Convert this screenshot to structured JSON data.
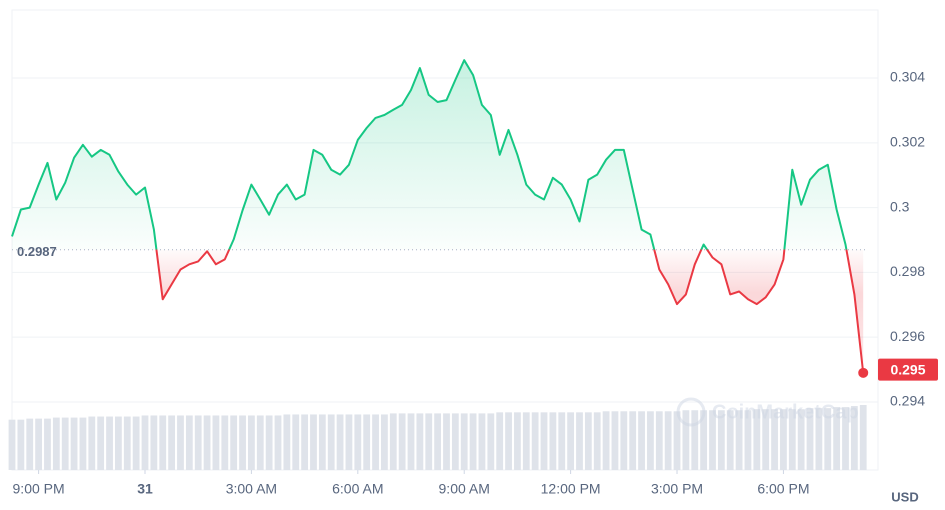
{
  "chart_data": {
    "type": "line",
    "x": [
      20.25,
      20.5,
      20.75,
      21,
      21.25,
      21.5,
      21.75,
      22,
      22.25,
      22.5,
      22.75,
      23,
      23.25,
      23.5,
      23.75,
      24,
      24.25,
      24.5,
      24.75,
      25,
      25.25,
      25.5,
      25.75,
      26,
      26.25,
      26.5,
      26.75,
      27,
      27.25,
      27.5,
      27.75,
      28,
      28.25,
      28.5,
      28.75,
      29,
      29.25,
      29.5,
      29.75,
      30,
      30.25,
      30.5,
      30.75,
      31,
      31.25,
      31.5,
      31.75,
      32,
      32.25,
      32.5,
      32.75,
      33,
      33.25,
      33.5,
      33.75,
      34,
      34.25,
      34.5,
      34.75,
      35,
      35.25,
      35.5,
      35.75,
      36,
      36.25,
      36.5,
      36.75,
      37,
      37.25,
      37.5,
      37.75,
      38,
      38.25,
      38.5,
      38.75,
      39,
      39.25,
      39.5,
      39.75,
      40,
      40.25,
      40.5,
      40.75,
      41,
      41.25,
      41.5,
      41.75,
      42,
      42.25,
      42.5,
      42.75,
      43,
      43.25,
      43.5,
      43.75,
      44,
      44.25
    ],
    "values": [
      0.29911,
      0.29994,
      0.3,
      0.30071,
      0.30138,
      0.30025,
      0.30077,
      0.30154,
      0.30194,
      0.30157,
      0.30178,
      0.30163,
      0.30111,
      0.30071,
      0.3004,
      0.30062,
      0.29932,
      0.29717,
      0.29763,
      0.29809,
      0.29825,
      0.29834,
      0.29865,
      0.29825,
      0.2984,
      0.29902,
      0.29991,
      0.30071,
      0.30025,
      0.29978,
      0.3004,
      0.30071,
      0.30025,
      0.3004,
      0.30178,
      0.30163,
      0.30117,
      0.30102,
      0.30132,
      0.30209,
      0.30246,
      0.30277,
      0.30286,
      0.30302,
      0.30317,
      0.30363,
      0.30431,
      0.30348,
      0.30326,
      0.30332,
      0.30394,
      0.30455,
      0.30409,
      0.30317,
      0.30286,
      0.30163,
      0.3024,
      0.30163,
      0.30071,
      0.3004,
      0.30025,
      0.30092,
      0.30071,
      0.30025,
      0.29957,
      0.30086,
      0.30102,
      0.30148,
      0.30178,
      0.30178,
      0.30055,
      0.29932,
      0.29917,
      0.29809,
      0.29763,
      0.29702,
      0.29732,
      0.29825,
      0.29886,
      0.29846,
      0.29825,
      0.29732,
      0.29741,
      0.29717,
      0.29702,
      0.29723,
      0.29763,
      0.2984,
      0.30117,
      0.30009,
      0.30086,
      0.30117,
      0.30132,
      0.29994,
      0.29886,
      0.29732,
      0.2949
    ],
    "volume": [
      48,
      48,
      49,
      49,
      49,
      50,
      50,
      50,
      50,
      51,
      51,
      51,
      51,
      51,
      51,
      52,
      52,
      52,
      52,
      52,
      52,
      52,
      52,
      52,
      52,
      52,
      52,
      52,
      52,
      52,
      52,
      53,
      53,
      53,
      53,
      53,
      53,
      53,
      53,
      53,
      53,
      53,
      53,
      54,
      54,
      54,
      54,
      54,
      54,
      54,
      54,
      54,
      54,
      54,
      54,
      55,
      55,
      55,
      55,
      55,
      55,
      55,
      55,
      55,
      55,
      55,
      55,
      56,
      56,
      56,
      56,
      56,
      56,
      56,
      56,
      56,
      57,
      57,
      57,
      57,
      57,
      57,
      57,
      57,
      58,
      58,
      58,
      58,
      58,
      58,
      59,
      59,
      59,
      60,
      60,
      61,
      62
    ],
    "reference": 0.2987,
    "current_price": 0.295,
    "up_color": "#16c784",
    "down_color": "#ea3943",
    "xlim": [
      20.25,
      44.3
    ],
    "ylim": [
      0.2919,
      0.3061
    ],
    "xticks": [
      {
        "value": 21,
        "label": "9:00 PM"
      },
      {
        "value": 24,
        "label": "31"
      },
      {
        "value": 27,
        "label": "3:00 AM"
      },
      {
        "value": 30,
        "label": "6:00 AM"
      },
      {
        "value": 33,
        "label": "9:00 AM"
      },
      {
        "value": 36,
        "label": "12:00 PM"
      },
      {
        "value": 39,
        "label": "3:00 PM"
      },
      {
        "value": 42,
        "label": "6:00 PM"
      }
    ],
    "yticks": [
      0.294,
      0.296,
      0.298,
      0.3,
      0.302,
      0.304
    ],
    "grid": true,
    "currency": "USD",
    "watermark": "CoinMarketCap"
  }
}
